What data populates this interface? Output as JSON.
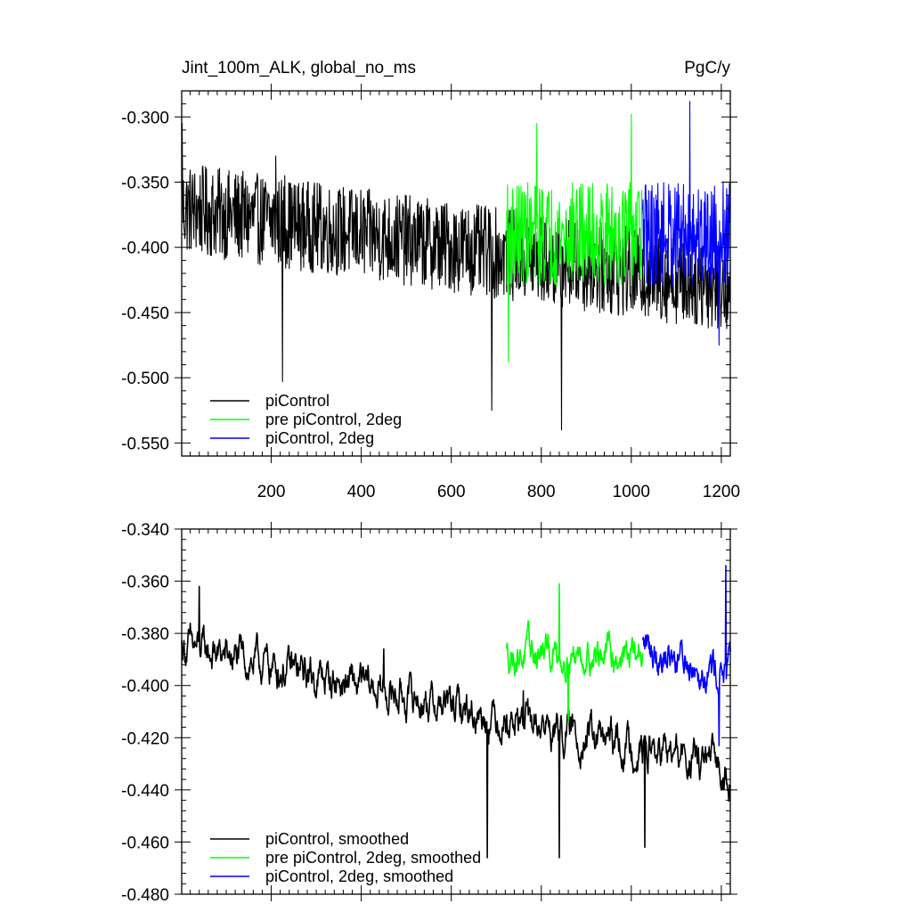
{
  "chart_data": [
    {
      "type": "line",
      "title": "Jint_100m_ALK, global_no_ms",
      "units": "PgC/y",
      "xlim": [
        1,
        1220
      ],
      "ylim": [
        -0.56,
        -0.28
      ],
      "xticks": [
        200,
        400,
        600,
        800,
        1000,
        1200
      ],
      "xtick_labels": [
        "200",
        "400",
        "600",
        "800",
        "1000",
        "1200"
      ],
      "yticks": [
        -0.3,
        -0.35,
        -0.4,
        -0.45,
        -0.5,
        -0.55
      ],
      "ytick_labels": [
        "-0.300",
        "-0.350",
        "-0.400",
        "-0.450",
        "-0.500",
        "-0.550"
      ],
      "legend_position": "bottom-left",
      "series": [
        {
          "name": "piControl",
          "color": "#000000",
          "x_start": 1,
          "x_end": 1220,
          "mean_start": -0.37,
          "mean_end": -0.43,
          "amplitude": 0.035,
          "spikes_up": [
            [
              2,
              -0.305
            ],
            [
              210,
              -0.33
            ],
            [
              230,
              -0.345
            ]
          ],
          "spikes_down": [
            [
              845,
              -0.54
            ],
            [
              225,
              -0.503
            ],
            [
              690,
              -0.525
            ]
          ]
        },
        {
          "name": "pre piControl, 2deg",
          "color": "#00ff00",
          "x_start": 723,
          "x_end": 1025,
          "mean_start": -0.39,
          "mean_end": -0.39,
          "amplitude": 0.04,
          "spikes_up": [
            [
              790,
              -0.305
            ],
            [
              1000,
              -0.298
            ]
          ],
          "spikes_down": [
            [
              727,
              -0.488
            ]
          ]
        },
        {
          "name": "piControl, 2deg",
          "color": "#0000ff",
          "x_start": 1025,
          "x_end": 1220,
          "mean_start": -0.39,
          "mean_end": -0.39,
          "amplitude": 0.04,
          "spikes_up": [
            [
              1130,
              -0.288
            ]
          ],
          "spikes_down": [
            [
              1195,
              -0.475
            ]
          ]
        }
      ]
    },
    {
      "type": "line",
      "title": "",
      "xlim": [
        1,
        1220
      ],
      "ylim": [
        -0.48,
        -0.34
      ],
      "xticks": [
        200,
        400,
        600,
        800,
        1000,
        1200
      ],
      "yticks": [
        -0.34,
        -0.36,
        -0.38,
        -0.4,
        -0.42,
        -0.44,
        -0.46,
        -0.48
      ],
      "ytick_labels": [
        "-0.340",
        "-0.360",
        "-0.380",
        "-0.400",
        "-0.420",
        "-0.440",
        "-0.460",
        "-0.480"
      ],
      "legend_position": "bottom-left",
      "series": [
        {
          "name": "piControl, smoothed",
          "color": "#000000",
          "x_start": 1,
          "x_end": 1220,
          "mean_start": -0.385,
          "mean_end": -0.432,
          "amplitude": 0.01,
          "spikes_up": [
            [
              40,
              -0.362
            ],
            [
              450,
              -0.386
            ],
            [
              760,
              -0.402
            ]
          ],
          "spikes_down": [
            [
              840,
              -0.466
            ],
            [
              680,
              -0.466
            ],
            [
              1030,
              -0.462
            ]
          ]
        },
        {
          "name": "pre piControl, 2deg, smoothed",
          "color": "#00ff00",
          "x_start": 723,
          "x_end": 1025,
          "mean_start": -0.388,
          "mean_end": -0.388,
          "amplitude": 0.009,
          "spikes_up": [
            [
              840,
              -0.361
            ]
          ],
          "spikes_down": [
            [
              860,
              -0.414
            ]
          ]
        },
        {
          "name": "piControl, 2deg, smoothed",
          "color": "#0000ff",
          "x_start": 1025,
          "x_end": 1220,
          "mean_start": -0.385,
          "mean_end": -0.395,
          "amplitude": 0.01,
          "spikes_up": [
            [
              1210,
              -0.354
            ]
          ],
          "spikes_down": [
            [
              1195,
              -0.423
            ]
          ]
        }
      ]
    }
  ]
}
